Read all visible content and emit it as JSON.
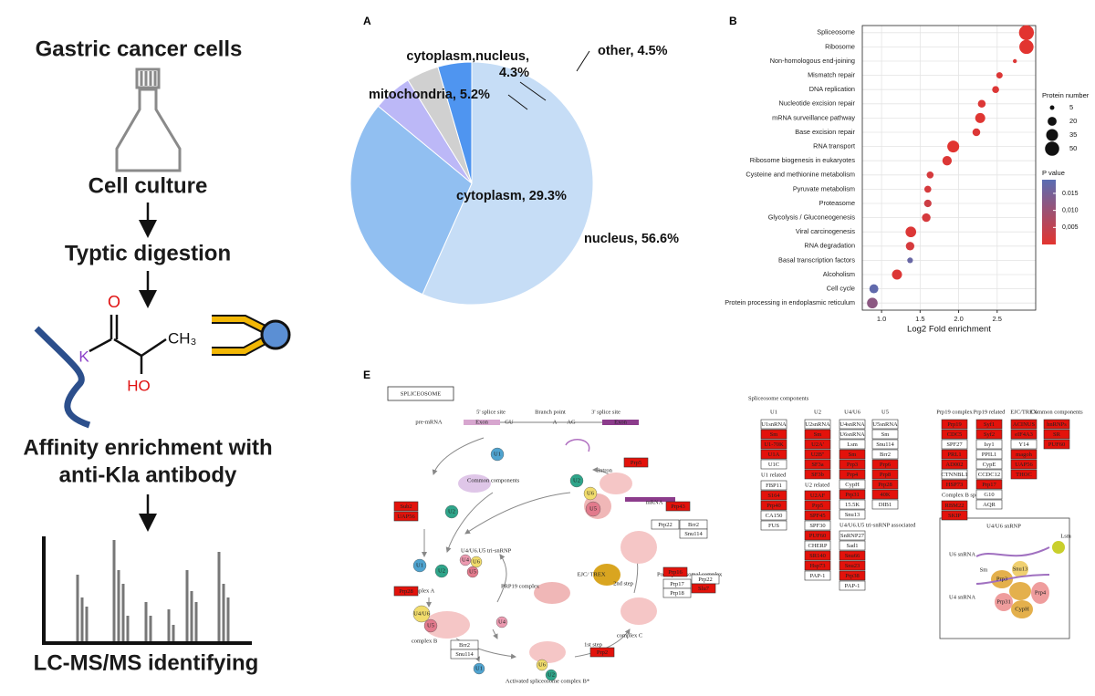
{
  "workflow": {
    "steps": [
      "Gastric cancer cells",
      "Cell culture",
      "Typtic digestion",
      [
        "Affinity enrichment with",
        "anti-Kla antibody"
      ],
      "LC-MS/MS identifying"
    ],
    "molecule": [
      "O",
      "K",
      "CH₃",
      "HO"
    ]
  },
  "chart_data": [
    {
      "type": "pie",
      "panel": "A",
      "categories": [
        "nucleus",
        "cytoplasm",
        "mitochondria",
        "cytoplasm,nucleus",
        "other"
      ],
      "values": [
        56.6,
        29.3,
        5.2,
        4.3,
        4.5
      ],
      "value_labels": [
        "nucleus, 56.6%",
        "cytoplasm, 29.3%",
        "mitochondria, 5.2%",
        "cytoplasm,nucleus, 4.3%",
        "other, 4.5%"
      ],
      "colors": [
        "#c6ddf6",
        "#91bff1",
        "#bcb8f7",
        "#d0d0d0",
        "#4f95f0"
      ]
    },
    {
      "type": "dot",
      "panel": "B",
      "x_label": "Log2 Fold enrichment",
      "categories": [
        "Spliceosome",
        "Ribosome",
        "Non-homologous end-joining",
        "Mismatch repair",
        "DNA replication",
        "Nucleotide excision repair",
        "mRNA surveillance pathway",
        "Base excision repair",
        "RNA transport",
        "Ribosome biogenesis in eukaryotes",
        "Cysteine and methionine metabolism",
        "Pyruvate metabolism",
        "Proteasome",
        "Glycolysis / Gluconeogenesis",
        "Viral carcinogenesis",
        "RNA degradation",
        "Basal transcription factors",
        "Alcoholism",
        "Cell cycle",
        "Protein processing in endoplasmic reticulum"
      ],
      "values": [
        2.88,
        2.88,
        2.73,
        2.53,
        2.48,
        2.3,
        2.28,
        2.23,
        1.93,
        1.85,
        1.63,
        1.6,
        1.6,
        1.58,
        1.38,
        1.37,
        1.37,
        1.2,
        0.9,
        0.88
      ],
      "sizes": [
        55,
        50,
        4,
        10,
        12,
        15,
        25,
        15,
        35,
        22,
        12,
        12,
        14,
        18,
        28,
        18,
        8,
        25,
        20,
        28
      ],
      "pvalues": [
        0.0001,
        0.0001,
        0.001,
        0.001,
        0.001,
        0.001,
        0.0005,
        0.001,
        0.0003,
        0.001,
        0.002,
        0.002,
        0.003,
        0.002,
        0.001,
        0.002,
        0.017,
        0.001,
        0.018,
        0.012
      ],
      "xlim": [
        0.75,
        3.0
      ],
      "xticks": [
        {
          "value": 1,
          "label": "1.0"
        },
        1.5,
        {
          "value": 2,
          "label": "2.0"
        },
        2.5
      ],
      "grid": true,
      "size_title": "Protein number",
      "size_legend": [
        5,
        20,
        35,
        50
      ],
      "color_title": "P value",
      "color_lim": [
        0,
        0.019
      ],
      "color_ticks": [
        {
          "value": 0.015,
          "label": "0.015"
        },
        {
          "value": 0.01,
          "label": "0,010"
        },
        {
          "value": 0.005,
          "label": "0,005"
        }
      ],
      "color_scale": [
        "#e3342f",
        "#5a6db3"
      ]
    }
  ],
  "diagram_e": {
    "panel": "E",
    "title": "SPLICEOSOME",
    "labels": [
      "pre-mRNA",
      "5' splice site",
      "Branch point",
      "3' splice site",
      "Exon",
      "GU",
      "A",
      "AG",
      "Exon",
      "Intron",
      "Common components",
      "U4/U6.U5 tri-snRNP",
      "complex A",
      "PRP19 complex",
      "complex B",
      "Activated spliceosome complex B*",
      "1st step",
      "2nd step",
      "complex C",
      "Post-spliceosomal complex",
      "mRNA",
      "EJC/ TREX"
    ],
    "particles": [
      {
        "text": "U1",
        "color": "#4fa3cf"
      },
      {
        "text": "U2",
        "color": "#2fa58a"
      },
      {
        "text": "U6",
        "color": "#f1dc6c"
      },
      {
        "text": "U5",
        "color": "#e27a8c"
      },
      {
        "text": "U2",
        "color": "#2fa58a"
      },
      {
        "text": "U1",
        "color": "#4fa3cf"
      },
      {
        "text": "U2",
        "color": "#2fa58a"
      },
      {
        "text": "U4",
        "color": "#ec9ab0"
      },
      {
        "text": "U6",
        "color": "#f1dc6c"
      },
      {
        "text": "U5",
        "color": "#e27a8c"
      },
      {
        "text": "U4/U6",
        "color": "#f1dc6c"
      },
      {
        "text": "U5",
        "color": "#e27a8c"
      },
      {
        "text": "U4",
        "color": "#ec9ab0"
      },
      {
        "text": "U1",
        "color": "#4fa3cf"
      },
      {
        "text": "U6",
        "color": "#f1dc6c"
      },
      {
        "text": "U2",
        "color": "#2fa58a"
      }
    ],
    "white_boxes": [
      "Prp22",
      "Brr2",
      "Snu114",
      "Prp17",
      "Prp22",
      "Prp18",
      "Brr2",
      "Snu114"
    ],
    "red_boxes": [
      "Prp5",
      "Sub2",
      "UAP56",
      "Prp28",
      "Prp16",
      "Slu7",
      "Prp2",
      "Prp43"
    ],
    "components_title": "Spliceosome components",
    "columns": [
      {
        "name": "U1",
        "items": [
          {
            "text": "U1snRNA",
            "fill": "#ffffff"
          },
          {
            "text": "Sm",
            "fill": "#e3120b"
          },
          {
            "text": "U1-70K",
            "fill": "#e3120b"
          },
          {
            "text": "U1A",
            "fill": "#e3120b"
          },
          {
            "text": "U1C",
            "fill": "#ffffff"
          },
          {
            "text": "U1 related"
          },
          {
            "text": "FBP11",
            "fill": "#ffffff"
          },
          {
            "text": "S164",
            "fill": "#e3120b"
          },
          {
            "text": "Prp40",
            "fill": "#e3120b"
          },
          {
            "text": "CA150",
            "fill": "#ffffff"
          },
          {
            "text": "FUS",
            "fill": "#ffffff"
          }
        ]
      },
      {
        "name": "U2",
        "items": [
          {
            "text": "U2snRNA",
            "fill": "#ffffff"
          },
          {
            "text": "Sm",
            "fill": "#e3120b"
          },
          {
            "text": "U2A'",
            "fill": "#e3120b"
          },
          {
            "text": "U2B''",
            "fill": "#e3120b"
          },
          {
            "text": "SF3a",
            "fill": "#e3120b"
          },
          {
            "text": "SF3b",
            "fill": "#e3120b"
          },
          {
            "text": "U2 related"
          },
          {
            "text": "U2AF",
            "fill": "#e3120b"
          },
          {
            "text": "Prp5",
            "fill": "#e3120b"
          },
          {
            "text": "SPF45",
            "fill": "#e3120b"
          },
          {
            "text": "SPF30",
            "fill": "#ffffff"
          },
          {
            "text": "PUF60",
            "fill": "#e3120b"
          },
          {
            "text": "CHERP",
            "fill": "#ffffff"
          },
          {
            "text": "SR140",
            "fill": "#e3120b"
          },
          {
            "text": "Hsp73",
            "fill": "#e3120b"
          },
          {
            "text": "PAP-1",
            "fill": "#ffffff"
          }
        ]
      },
      {
        "name": "U4/U6",
        "items": [
          {
            "text": "U4snRNA",
            "fill": "#ffffff"
          },
          {
            "text": "U6snRNA",
            "fill": "#ffffff"
          },
          {
            "text": "Lsm",
            "fill": "#ffffff"
          },
          {
            "text": "Sm",
            "fill": "#e3120b"
          },
          {
            "text": "Prp3",
            "fill": "#e3120b"
          },
          {
            "text": "Prp4",
            "fill": "#e3120b"
          },
          {
            "text": "CypH",
            "fill": "#ffffff"
          },
          {
            "text": "Prp31",
            "fill": "#e3120b"
          },
          {
            "text": "15.5K",
            "fill": "#ffffff"
          },
          {
            "text": "Snu13",
            "fill": "#ffffff"
          },
          {
            "text": "U4/U6.U5 tri-snRNP associated"
          },
          {
            "text": "SnRNP27",
            "fill": "#ffffff"
          },
          {
            "text": "Sad1",
            "fill": "#ffffff"
          },
          {
            "text": "Snu66",
            "fill": "#e3120b"
          },
          {
            "text": "Snu23",
            "fill": "#e3120b"
          },
          {
            "text": "Prp38",
            "fill": "#e3120b"
          },
          {
            "text": "PAP-1",
            "fill": "#ffffff"
          }
        ]
      },
      {
        "name": "U5",
        "items": [
          {
            "text": "U5snRNA",
            "fill": "#ffffff"
          },
          {
            "text": "Sm",
            "fill": "#ffffff"
          },
          {
            "text": "Snu114",
            "fill": "#ffffff"
          },
          {
            "text": "Brr2",
            "fill": "#ffffff"
          },
          {
            "text": "Prp6",
            "fill": "#e3120b"
          },
          {
            "text": "Prp8",
            "fill": "#e3120b"
          },
          {
            "text": "Prp28",
            "fill": "#e3120b"
          },
          {
            "text": "40K",
            "fill": "#e3120b"
          },
          {
            "text": "DIB1",
            "fill": "#ffffff"
          }
        ]
      },
      {
        "name": "Prp19 complex",
        "items": [
          {
            "text": "Prp19",
            "fill": "#e3120b"
          },
          {
            "text": "CDC5",
            "fill": "#e3120b"
          },
          {
            "text": "SPF27",
            "fill": "#ffffff"
          },
          {
            "text": "PRL1",
            "fill": "#e3120b"
          },
          {
            "text": "AD002",
            "fill": "#e3120b"
          },
          {
            "text": "CTNNBL1",
            "fill": "#ffffff"
          },
          {
            "text": "HSP73",
            "fill": "#e3120b"
          },
          {
            "text": "Complex B specific"
          },
          {
            "text": "RBM22",
            "fill": "#e3120b"
          },
          {
            "text": "SKIP",
            "fill": "#e3120b"
          }
        ]
      },
      {
        "name": "Prp19 related",
        "items": [
          {
            "text": "Syf1",
            "fill": "#e3120b"
          },
          {
            "text": "Syf2",
            "fill": "#e3120b"
          },
          {
            "text": "Isy1",
            "fill": "#ffffff"
          },
          {
            "text": "PPIL1",
            "fill": "#ffffff"
          },
          {
            "text": "CypE",
            "fill": "#ffffff"
          },
          {
            "text": "CCDC12",
            "fill": "#ffffff"
          },
          {
            "text": "Prp17",
            "fill": "#e3120b"
          },
          {
            "text": "G10",
            "fill": "#ffffff"
          },
          {
            "text": "AQR",
            "fill": "#ffffff"
          }
        ]
      },
      {
        "name": "EJC/TREX",
        "items": [
          {
            "text": "ACINUS",
            "fill": "#e3120b"
          },
          {
            "text": "eIF4A3",
            "fill": "#e3120b"
          },
          {
            "text": "Y14",
            "fill": "#ffffff"
          },
          {
            "text": "magoh",
            "fill": "#e3120b"
          },
          {
            "text": "UAP56",
            "fill": "#e3120b"
          },
          {
            "text": "THOC",
            "fill": "#e3120b"
          }
        ]
      },
      {
        "name": "Common components",
        "items": [
          {
            "text": "hnRNPs",
            "fill": "#e3120b"
          },
          {
            "text": "SR",
            "fill": "#e3120b"
          },
          {
            "text": "PUF60",
            "fill": "#e3120b"
          }
        ]
      }
    ],
    "inset_labels": [
      "U4/U6 snRNP",
      "U6 snRNA",
      "U4 snRNA",
      "Lsm",
      "Prp3",
      "Prp4",
      "Prp31",
      "CypH",
      "Snu13",
      "Sm"
    ]
  }
}
